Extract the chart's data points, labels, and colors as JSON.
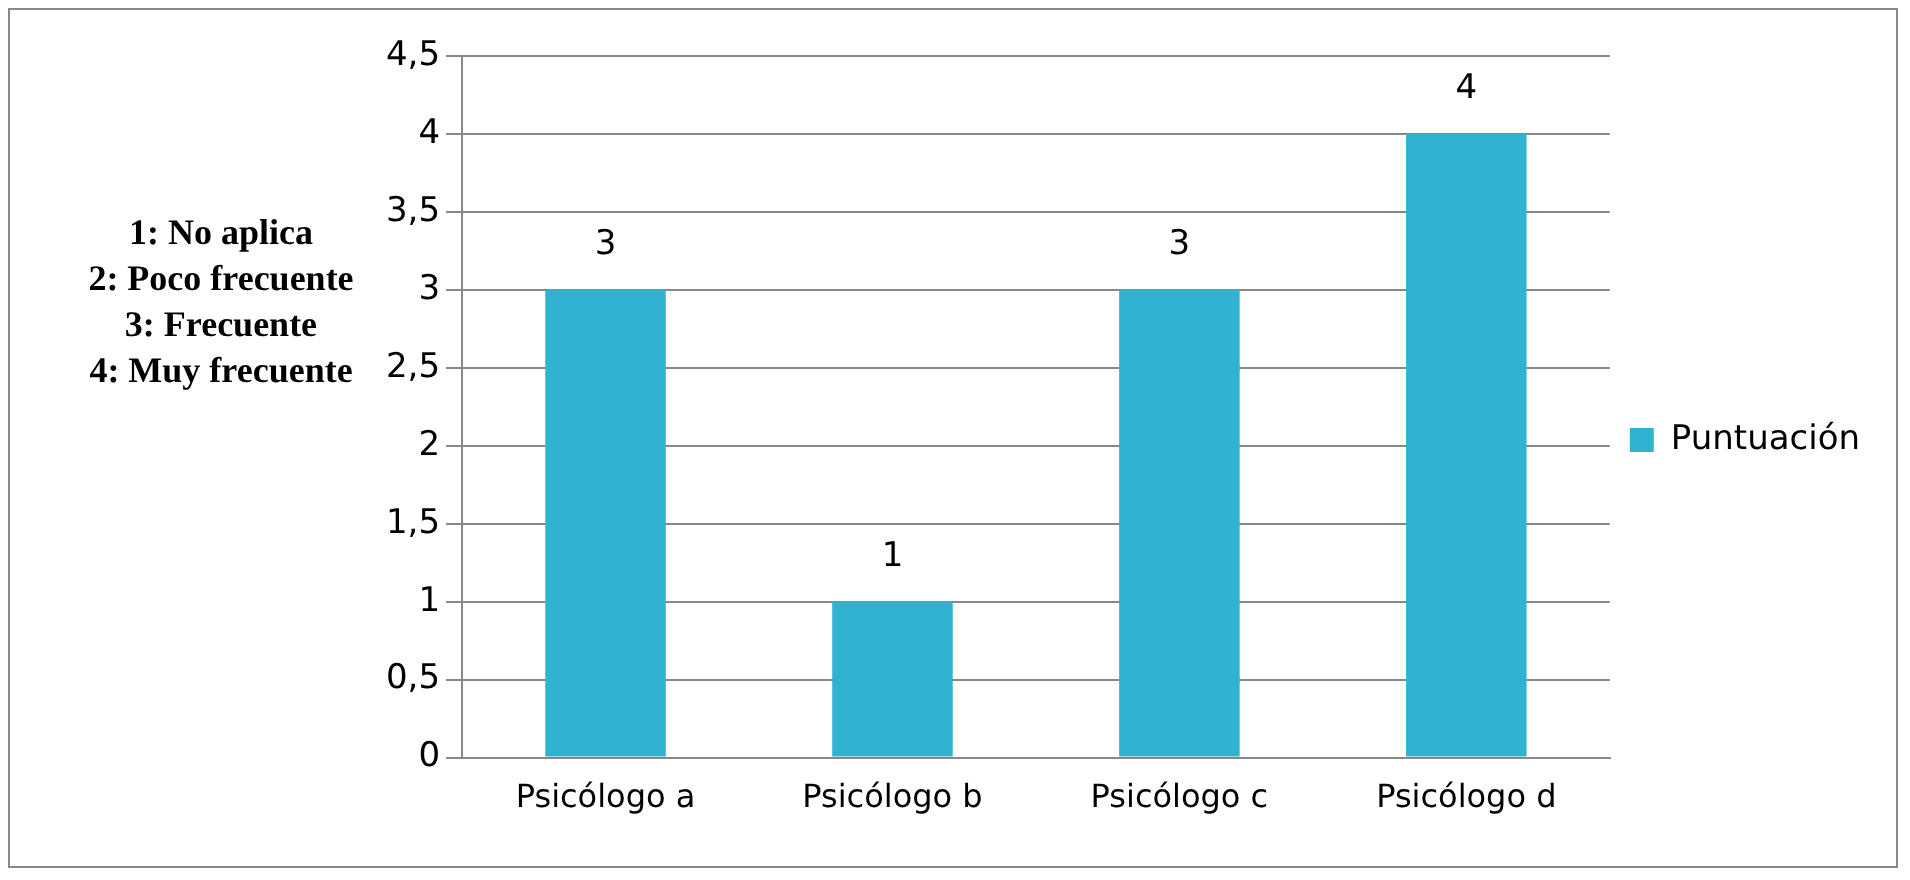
{
  "chart_data": {
    "type": "bar",
    "categories": [
      "Psicólogo a",
      "Psicólogo b",
      "Psicólogo c",
      "Psicólogo d"
    ],
    "series": [
      {
        "name": "Puntuación",
        "color": "#2fb3d0",
        "values": [
          3,
          1,
          3,
          4
        ]
      }
    ],
    "ylim": [
      0,
      4.5
    ],
    "yticks": [
      0,
      {
        "value": 0.5,
        "label": "0,5"
      },
      1,
      {
        "value": 1.5,
        "label": "1,5"
      },
      2,
      {
        "value": 2.5,
        "label": "2,5"
      },
      3,
      {
        "value": 3.5,
        "label": "3,5"
      },
      4,
      {
        "value": 4.5,
        "label": "4,5"
      }
    ],
    "grid": "y",
    "legend": "right",
    "data_labels": true,
    "annotations": [
      "1: No aplica",
      "2: Poco frecuente",
      "3: Frecuente",
      "4: Muy frecuente"
    ]
  }
}
